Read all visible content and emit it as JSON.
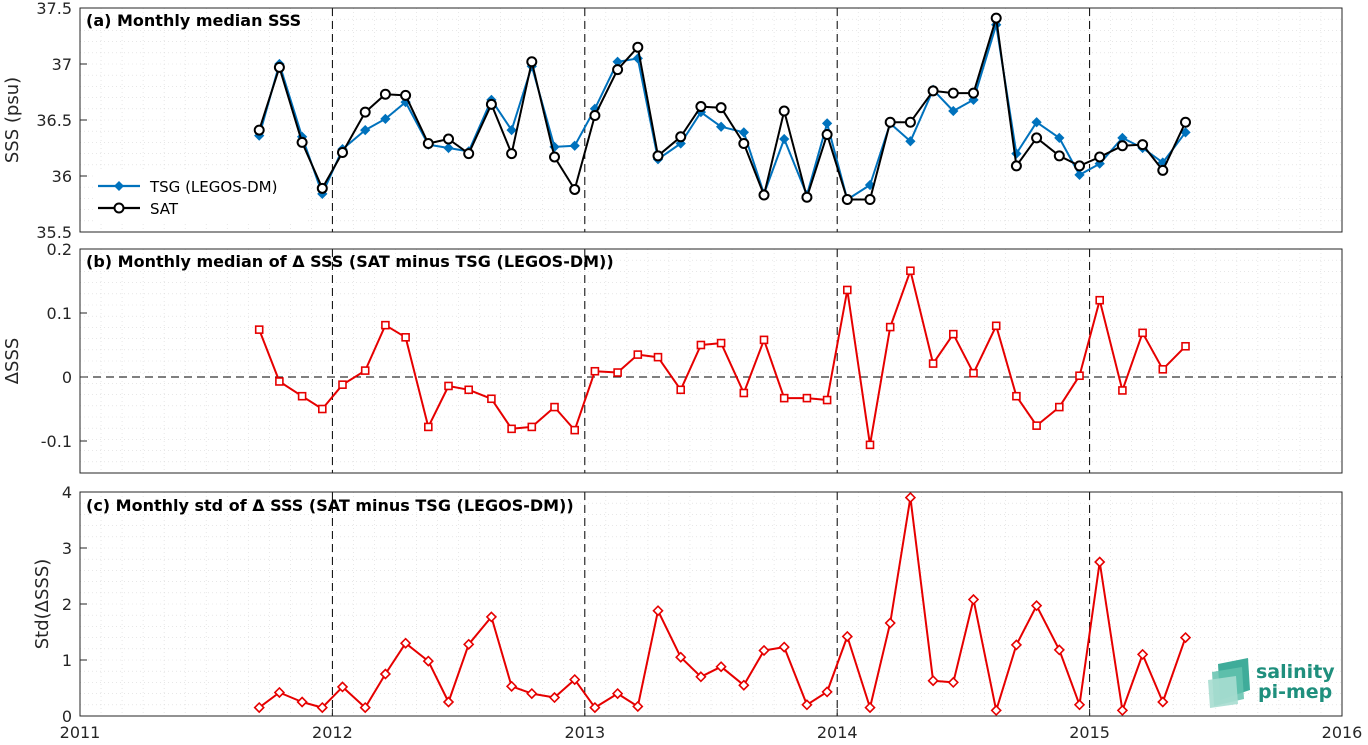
{
  "chart_data": [
    {
      "type": "line",
      "title": "(a) Monthly median SSS",
      "xlabel": "",
      "ylabel": "SSS (psu)",
      "xlim": [
        2011,
        2016
      ],
      "ylim": [
        35.5,
        37.5
      ],
      "yticks": [
        "35.5",
        "36",
        "36.5",
        "37",
        "37.5"
      ],
      "legend": "lower-left",
      "grid": true,
      "x": [
        2011.71,
        2011.79,
        2011.88,
        2011.96,
        2012.04,
        2012.13,
        2012.21,
        2012.29,
        2012.38,
        2012.46,
        2012.54,
        2012.63,
        2012.71,
        2012.79,
        2012.88,
        2012.96,
        2013.04,
        2013.13,
        2013.21,
        2013.29,
        2013.38,
        2013.46,
        2013.54,
        2013.63,
        2013.71,
        2013.79,
        2013.88,
        2013.96,
        2014.04,
        2014.13,
        2014.21,
        2014.29,
        2014.38,
        2014.46,
        2014.54,
        2014.63,
        2014.71,
        2014.79,
        2014.88,
        2014.96,
        2015.04,
        2015.13,
        2015.21,
        2015.29,
        2015.38
      ],
      "series": [
        {
          "name": "TSG (LEGOS-DM)",
          "color": "#0072BD",
          "marker": "diamond",
          "values": [
            36.36,
            37.0,
            36.35,
            35.84,
            36.24,
            36.41,
            36.51,
            36.66,
            36.28,
            36.25,
            36.22,
            36.68,
            36.41,
            36.98,
            36.26,
            36.27,
            36.6,
            37.02,
            37.05,
            36.15,
            36.29,
            36.57,
            36.44,
            36.39,
            35.84,
            36.33,
            35.83,
            36.47,
            35.79,
            35.92,
            36.47,
            36.31,
            36.77,
            36.58,
            36.68,
            37.35,
            36.2,
            36.48,
            36.34,
            36.01,
            36.11,
            36.34,
            36.25,
            36.12,
            36.39
          ]
        },
        {
          "name": "SAT",
          "color": "#000000",
          "marker": "circle",
          "values": [
            36.41,
            36.97,
            36.3,
            35.89,
            36.21,
            36.57,
            36.73,
            36.72,
            36.29,
            36.33,
            36.2,
            36.64,
            36.2,
            37.02,
            36.17,
            35.88,
            36.54,
            36.95,
            37.15,
            36.18,
            36.35,
            36.62,
            36.61,
            36.29,
            35.83,
            36.58,
            35.81,
            36.37,
            35.79,
            35.79,
            36.48,
            36.48,
            36.76,
            36.74,
            36.74,
            37.41,
            36.09,
            36.34,
            36.18,
            36.09,
            36.17,
            36.27,
            36.28,
            36.05,
            36.48
          ]
        }
      ]
    },
    {
      "type": "line",
      "title": "(b) Monthly median of Δ SSS (SAT minus TSG (LEGOS-DM))",
      "xlabel": "",
      "ylabel": "ΔSSS",
      "xlim": [
        2011,
        2016
      ],
      "ylim": [
        -0.15,
        0.2
      ],
      "yticks": [
        "-0.1",
        "0",
        "0.1",
        "0.2"
      ],
      "grid": true,
      "x": [
        2011.71,
        2011.79,
        2011.88,
        2011.96,
        2012.04,
        2012.13,
        2012.21,
        2012.29,
        2012.38,
        2012.46,
        2012.54,
        2012.63,
        2012.71,
        2012.79,
        2012.88,
        2012.96,
        2013.04,
        2013.13,
        2013.21,
        2013.29,
        2013.38,
        2013.46,
        2013.54,
        2013.63,
        2013.71,
        2013.79,
        2013.88,
        2013.96,
        2014.04,
        2014.13,
        2014.21,
        2014.29,
        2014.38,
        2014.46,
        2014.54,
        2014.63,
        2014.71,
        2014.79,
        2014.88,
        2014.96,
        2015.04,
        2015.13,
        2015.21,
        2015.29,
        2015.38
      ],
      "series": [
        {
          "name": "",
          "color": "#E60000",
          "marker": "square",
          "values": [
            0.074,
            -0.007,
            -0.03,
            -0.05,
            -0.012,
            0.01,
            0.081,
            0.062,
            -0.078,
            -0.014,
            -0.02,
            -0.034,
            -0.081,
            -0.078,
            -0.047,
            -0.083,
            0.009,
            0.007,
            0.035,
            0.031,
            -0.02,
            0.05,
            0.053,
            -0.025,
            0.058,
            -0.033,
            -0.033,
            -0.036,
            0.136,
            -0.106,
            0.078,
            0.166,
            0.021,
            0.067,
            0.006,
            0.08,
            -0.03,
            -0.076,
            -0.047,
            0.002,
            0.12,
            -0.021,
            0.069,
            0.012,
            0.048
          ]
        }
      ]
    },
    {
      "type": "line",
      "title": "(c) Monthly std of Δ SSS (SAT minus TSG (LEGOS-DM))",
      "xlabel": "",
      "ylabel": "Std(ΔSSS)",
      "xlim": [
        2011,
        2016
      ],
      "ylim": [
        0,
        4
      ],
      "yticks": [
        "0",
        "1",
        "2",
        "3",
        "4"
      ],
      "xticks": [
        "2011",
        "2012",
        "2013",
        "2014",
        "2015",
        "2016"
      ],
      "grid": true,
      "x": [
        2011.71,
        2011.79,
        2011.88,
        2011.96,
        2012.04,
        2012.13,
        2012.21,
        2012.29,
        2012.38,
        2012.46,
        2012.54,
        2012.63,
        2012.71,
        2012.79,
        2012.88,
        2012.96,
        2013.04,
        2013.13,
        2013.21,
        2013.29,
        2013.38,
        2013.46,
        2013.54,
        2013.63,
        2013.71,
        2013.79,
        2013.88,
        2013.96,
        2014.04,
        2014.13,
        2014.21,
        2014.29,
        2014.38,
        2014.46,
        2014.54,
        2014.63,
        2014.71,
        2014.79,
        2014.88,
        2014.96,
        2015.04,
        2015.13,
        2015.21,
        2015.29,
        2015.38
      ],
      "series": [
        {
          "name": "",
          "color": "#E60000",
          "marker": "diamond",
          "values": [
            0.15,
            0.42,
            0.25,
            0.15,
            0.52,
            0.15,
            0.75,
            1.3,
            0.98,
            0.25,
            1.28,
            1.77,
            0.53,
            0.4,
            0.33,
            0.65,
            0.15,
            0.4,
            0.17,
            1.88,
            1.05,
            0.7,
            0.88,
            0.55,
            1.17,
            1.23,
            0.2,
            0.43,
            1.42,
            0.15,
            1.66,
            3.9,
            0.63,
            0.6,
            2.08,
            0.1,
            1.27,
            1.97,
            1.18,
            0.2,
            2.75,
            0.1,
            1.1,
            0.25,
            1.4
          ]
        }
      ]
    }
  ],
  "logo": {
    "line1": "salinity",
    "line2": "pi-mep",
    "color": "#1f8f7d"
  }
}
